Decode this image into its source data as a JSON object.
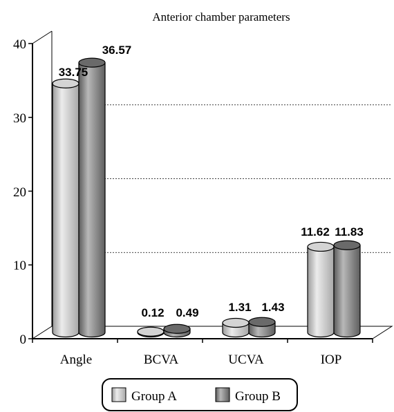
{
  "chart_data": {
    "type": "bar",
    "title": "Anterior chamber parameters",
    "categories": [
      "Angle",
      "BCVA",
      "UCVA",
      "IOP"
    ],
    "series": [
      {
        "name": "Group A",
        "values": [
          33.75,
          0.12,
          1.31,
          11.62
        ],
        "color": "#cfcfcf"
      },
      {
        "name": "Group B",
        "values": [
          36.57,
          0.49,
          1.43,
          11.83
        ],
        "color": "#8c8c8c"
      }
    ],
    "data_labels": [
      [
        "33.75",
        "0.12",
        "1.31",
        "11.62"
      ],
      [
        "36.57",
        "0.49",
        "1.43",
        "11.83"
      ]
    ],
    "yticks": [
      "0",
      "10",
      "20",
      "30",
      "40"
    ],
    "ylim": [
      0,
      40
    ],
    "grid": "horizontal dotted",
    "legend_position": "bottom",
    "style": "3d cylinder"
  }
}
